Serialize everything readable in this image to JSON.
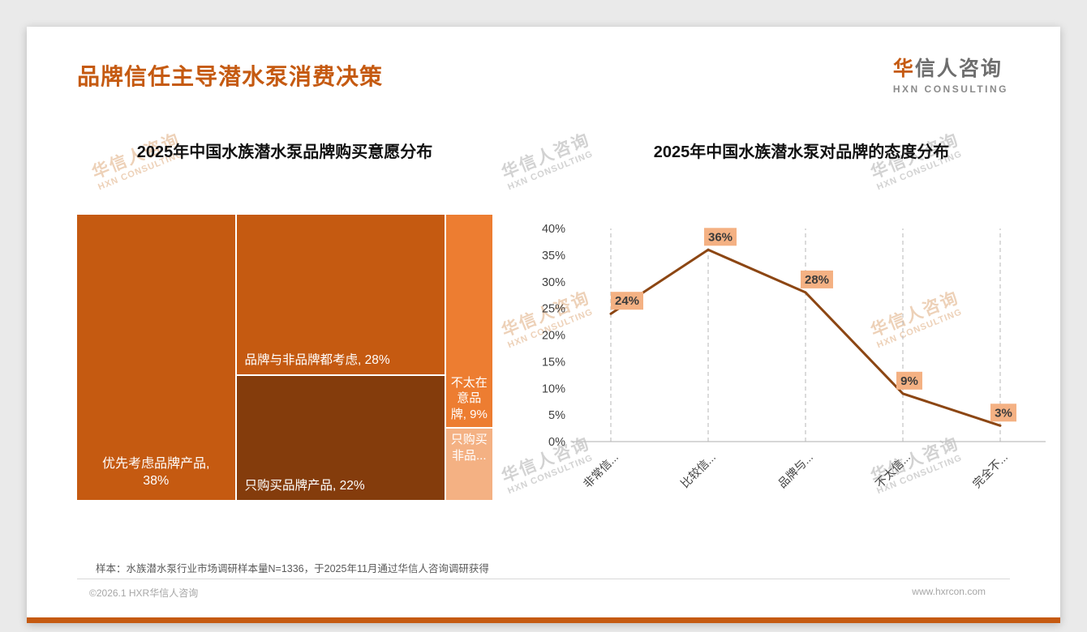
{
  "slide": {
    "title": "品牌信任主导潜水泵消费决策",
    "logo": {
      "cn_accent": "华",
      "cn_rest": "信人咨询",
      "en": "HXN CONSULTING"
    },
    "watermark": {
      "cn": "华信人咨询",
      "en": "HXN CONSULTING"
    },
    "footer_note": "样本：水族潜水泵行业市场调研样本量N=1336，于2025年11月通过华信人咨询调研获得",
    "copyright": "©2026.1 HXR华信人咨询",
    "website": "www.hxrcon.com"
  },
  "colors": {
    "accent": "#C55A11",
    "dark_block": "#843C0C",
    "mid_orange": "#ED7D31",
    "light_orange": "#F4B183"
  },
  "chart_data": [
    {
      "type": "treemap",
      "title": "2025年中国水族潜水泵品牌购买意愿分布",
      "items": [
        {
          "label": "优先考虑品牌产品",
          "value_pct": 38,
          "display": "优先考虑品牌产品, 38%",
          "color": "#C55A11"
        },
        {
          "label": "品牌与非品牌都考虑",
          "value_pct": 28,
          "display": "品牌与非品牌都考虑, 28%",
          "color": "#C55A11"
        },
        {
          "label": "只购买品牌产品",
          "value_pct": 22,
          "display": "只购买品牌产品, 22%",
          "color": "#843C0C"
        },
        {
          "label": "不太在意品牌",
          "value_pct": 9,
          "display": "不太在意品牌, 9%",
          "color": "#ED7D31"
        },
        {
          "label": "只购买非品牌",
          "value_pct": 3,
          "display": "只购买非品...",
          "color": "#F4B183"
        }
      ]
    },
    {
      "type": "line",
      "title": "2025年中国水族潜水泵对品牌的态度分布",
      "categories": [
        "非常信...",
        "比较信...",
        "品牌与...",
        "不太信...",
        "完全不..."
      ],
      "values": [
        24,
        36,
        28,
        9,
        3
      ],
      "point_labels": [
        "24%",
        "36%",
        "28%",
        "9%",
        "3%"
      ],
      "ylim": [
        0,
        40
      ],
      "ytick_step": 5,
      "ytick_suffix": "%",
      "grid": "dashed-vertical",
      "legend": "none",
      "line_color": "#8C4613",
      "label_bg": "#F4B183"
    }
  ]
}
